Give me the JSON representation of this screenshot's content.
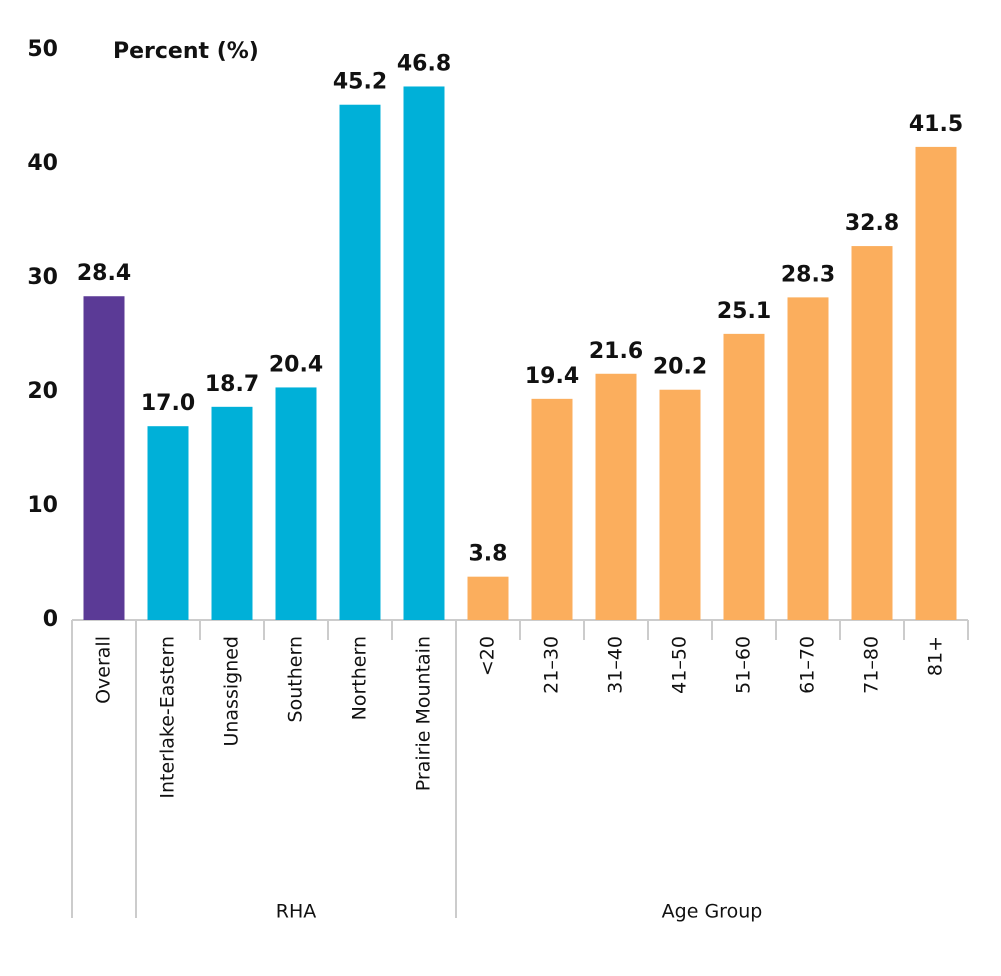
{
  "chart_data": {
    "type": "bar",
    "y_label": "Percent (%)",
    "categories": [
      "Overall",
      "Interlake-Eastern",
      "Unassigned",
      "Southern",
      "Northern",
      "Prairie Mountain",
      "<20",
      "21–30",
      "31–40",
      "41–50",
      "51–60",
      "61–70",
      "71–80",
      "81+"
    ],
    "values": [
      28.4,
      17.0,
      18.7,
      20.4,
      45.2,
      46.8,
      3.8,
      19.4,
      21.6,
      20.2,
      25.1,
      28.3,
      32.8,
      41.5
    ],
    "value_labels": [
      "28.4",
      "17.0",
      "18.7",
      "20.4",
      "45.2",
      "46.8",
      "3.8",
      "19.4",
      "21.6",
      "20.2",
      "25.1",
      "28.3",
      "32.8",
      "41.5"
    ],
    "colors": [
      "#5b3a96",
      "#00b0d8",
      "#00b0d8",
      "#00b0d8",
      "#00b0d8",
      "#00b0d8",
      "#fbae5d",
      "#fbae5d",
      "#fbae5d",
      "#fbae5d",
      "#fbae5d",
      "#fbae5d",
      "#fbae5d",
      "#fbae5d"
    ],
    "groups": [
      "RHA",
      "Age Group"
    ],
    "ylim": [
      0,
      50
    ],
    "yticks": [
      0,
      10,
      20,
      30,
      40,
      50
    ],
    "grid": false
  }
}
